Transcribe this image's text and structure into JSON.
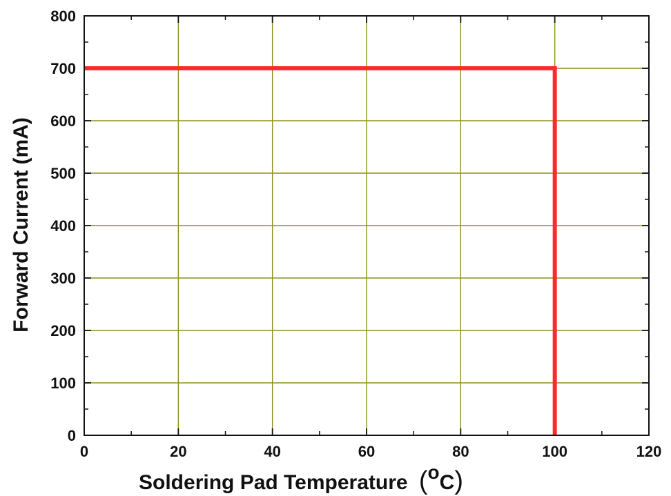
{
  "chart_data": {
    "type": "line",
    "xlabel": "Soldering Pad Temperature",
    "xlabel_unit": {
      "open": "(",
      "degree": "o",
      "symbol": "C",
      "close": ")"
    },
    "ylabel": "Forward Current (mA)",
    "xlim": [
      0,
      120
    ],
    "ylim": [
      0,
      800
    ],
    "x_ticks": [
      "0",
      "20",
      "40",
      "60",
      "80",
      "100",
      "120"
    ],
    "y_ticks": [
      "0",
      "100",
      "200",
      "300",
      "400",
      "500",
      "600",
      "700",
      "800"
    ],
    "x_tick_values": [
      0,
      20,
      40,
      60,
      80,
      100,
      120
    ],
    "y_tick_values": [
      0,
      100,
      200,
      300,
      400,
      500,
      600,
      700,
      800
    ],
    "grid": true,
    "series": [
      {
        "x": [
          0,
          100,
          100
        ],
        "y": [
          700,
          700,
          0
        ],
        "color": "#ff2a2a"
      }
    ]
  },
  "colors": {
    "grid": "#8f8f1e",
    "axis": "#111111",
    "series": "#ff2a2a"
  }
}
